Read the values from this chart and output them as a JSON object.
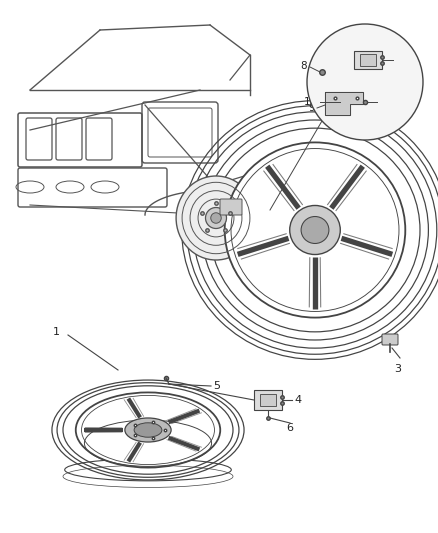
{
  "background_color": "#ffffff",
  "line_color": "#444444",
  "text_color": "#222222",
  "fig_width": 4.38,
  "fig_height": 5.33,
  "dpi": 100,
  "car_color": "#555555",
  "wheel_color": "#444444"
}
